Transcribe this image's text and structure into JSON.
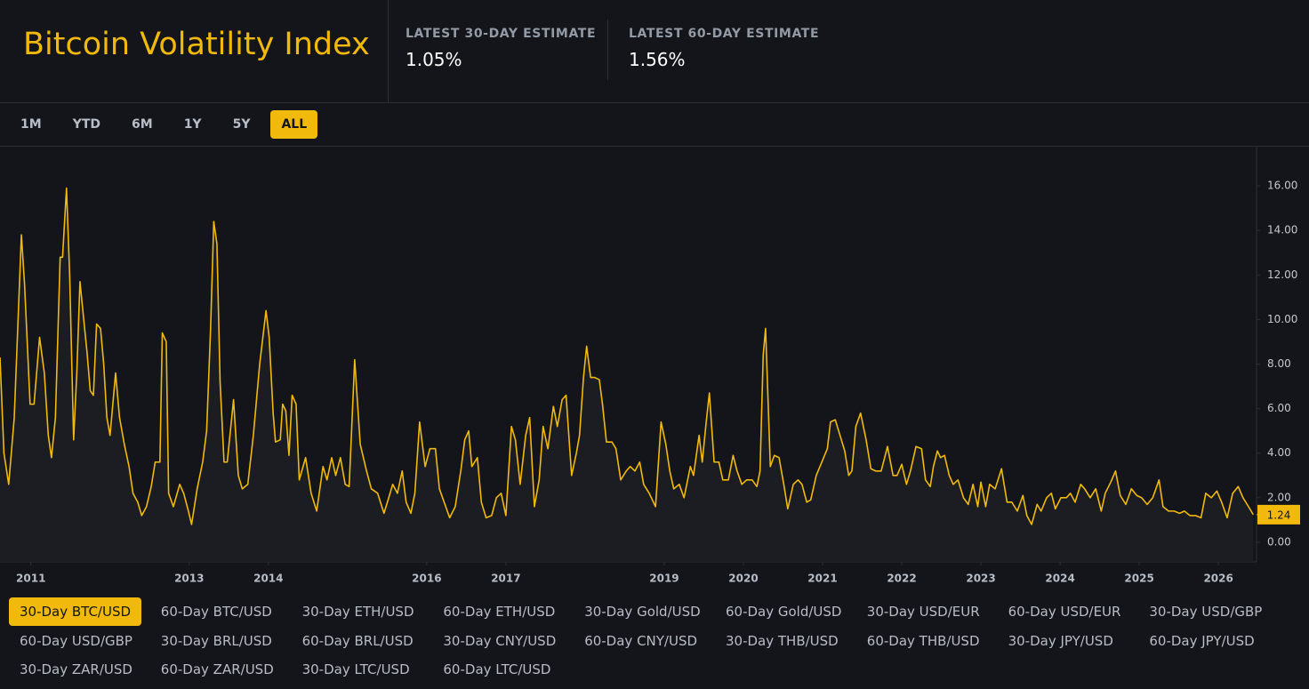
{
  "header": {
    "title": "Bitcoin Volatility Index",
    "stats": [
      {
        "label": "LATEST 30-DAY ESTIMATE",
        "value": "1.05%"
      },
      {
        "label": "LATEST 60-DAY ESTIMATE",
        "value": "1.56%"
      }
    ]
  },
  "range_buttons": [
    {
      "label": "1M",
      "selected": false
    },
    {
      "label": "YTD",
      "selected": false
    },
    {
      "label": "6M",
      "selected": false
    },
    {
      "label": "1Y",
      "selected": false
    },
    {
      "label": "5Y",
      "selected": false
    },
    {
      "label": "ALL",
      "selected": true
    }
  ],
  "other_series_tabs": [
    "60-Day BTC/USD",
    "30-Day ETH/USD",
    "60-Day ETH/USD",
    "30-Day Gold/USD",
    "60-Day Gold/USD",
    "30-Day USD/EUR",
    "60-Day USD/EUR",
    "30-Day USD/GBP",
    "60-Day USD/GBP",
    "30-Day BRL/USD",
    "60-Day BRL/USD",
    "30-Day CNY/USD",
    "60-Day CNY/USD",
    "30-Day THB/USD",
    "60-Day THB/USD",
    "30-Day JPY/USD",
    "60-Day JPY/USD",
    "30-Day ZAR/USD",
    "60-Day ZAR/USD",
    "30-Day LTC/USD",
    "60-Day LTC/USD"
  ],
  "chart_data": {
    "type": "line",
    "x": [
      2010.61,
      2010.66,
      2010.72,
      2010.79,
      2010.88,
      2010.92,
      2010.99,
      2011.04,
      2011.11,
      2011.17,
      2011.22,
      2011.26,
      2011.31,
      2011.37,
      2011.4,
      2011.45,
      2011.49,
      2011.54,
      2011.58,
      2011.62,
      2011.71,
      2011.75,
      2011.79,
      2011.83,
      2011.88,
      2011.92,
      2011.96,
      2012.0,
      2012.07,
      2012.12,
      2012.18,
      2012.24,
      2012.29,
      2012.35,
      2012.4,
      2012.46,
      2012.52,
      2012.57,
      2012.63,
      2012.66,
      2012.71,
      2012.74,
      2012.8,
      2012.88,
      2012.93,
      2012.99,
      2013.03,
      2013.1,
      2013.17,
      2013.22,
      2013.27,
      2013.31,
      2013.35,
      2013.39,
      2013.44,
      2013.48,
      2013.56,
      2013.62,
      2013.67,
      2013.74,
      2013.81,
      2013.89,
      2013.97,
      2014.01,
      2014.06,
      2014.09,
      2014.15,
      2014.18,
      2014.22,
      2014.26,
      2014.3,
      2014.35,
      2014.39,
      2014.47,
      2014.54,
      2014.61,
      2014.69,
      2014.74,
      2014.8,
      2014.85,
      2014.91,
      2014.97,
      2015.02,
      2015.09,
      2015.16,
      2015.24,
      2015.3,
      2015.38,
      2015.46,
      2015.52,
      2015.57,
      2015.63,
      2015.69,
      2015.74,
      2015.8,
      2015.85,
      2015.91,
      2015.98,
      2016.04,
      2016.11,
      2016.16,
      2016.22,
      2016.29,
      2016.36,
      2016.43,
      2016.48,
      2016.53,
      2016.57,
      2016.64,
      2016.69,
      2016.75,
      2016.82,
      2016.88,
      2016.94,
      2017.0,
      2017.07,
      2017.12,
      2017.18,
      2017.25,
      2017.3,
      2017.36,
      2017.42,
      2017.47,
      2017.53,
      2017.6,
      2017.65,
      2017.71,
      2017.76,
      2017.83,
      2017.89,
      2017.93,
      2017.98,
      2018.02,
      2018.07,
      2018.12,
      2018.18,
      2018.22,
      2018.27,
      2018.34,
      2018.39,
      2018.45,
      2018.52,
      2018.57,
      2018.63,
      2018.69,
      2018.74,
      2018.81,
      2018.89,
      2018.96,
      2019.02,
      2019.07,
      2019.12,
      2019.19,
      2019.25,
      2019.33,
      2019.37,
      2019.44,
      2019.48,
      2019.53,
      2019.57,
      2019.63,
      2019.69,
      2019.74,
      2019.81,
      2019.87,
      2019.92,
      2019.98,
      2020.04,
      2020.11,
      2020.17,
      2020.21,
      2020.25,
      2020.28,
      2020.34,
      2020.39,
      2020.45,
      2020.51,
      2020.56,
      2020.63,
      2020.69,
      2020.74,
      2020.8,
      2020.85,
      2020.92,
      2020.99,
      2021.06,
      2021.1,
      2021.16,
      2021.22,
      2021.28,
      2021.33,
      2021.37,
      2021.42,
      2021.48,
      2021.55,
      2021.61,
      2021.67,
      2021.74,
      2021.82,
      2021.89,
      2021.94,
      2022.0,
      2022.06,
      2022.11,
      2022.18,
      2022.25,
      2022.3,
      2022.36,
      2022.4,
      2022.45,
      2022.49,
      2022.54,
      2022.6,
      2022.65,
      2022.71,
      2022.78,
      2022.84,
      2022.9,
      2022.96,
      2023.0,
      2023.06,
      2023.11,
      2023.18,
      2023.26,
      2023.33,
      2023.39,
      2023.46,
      2023.53,
      2023.58,
      2023.64,
      2023.71,
      2023.76,
      2023.83,
      2023.89,
      2023.94,
      2024.01,
      2024.08,
      2024.13,
      2024.19,
      2024.26,
      2024.31,
      2024.38,
      2024.45,
      2024.52,
      2024.57,
      2024.64,
      2024.7,
      2024.76,
      2024.83,
      2024.9,
      2024.97,
      2025.03,
      2025.1,
      2025.17,
      2025.25,
      2025.3,
      2025.37,
      2025.44,
      2025.51,
      2025.57,
      2025.64,
      2025.71,
      2025.78,
      2025.84,
      2025.91,
      2025.98,
      2026.04,
      2026.11,
      2026.18,
      2026.25,
      2026.31,
      2026.38,
      2026.44
    ],
    "series": [
      {
        "name": "30-Day BTC/USD",
        "color": "#f0b90b",
        "values": [
          8.3,
          4.0,
          2.6,
          5.6,
          13.8,
          11.6,
          6.2,
          6.2,
          9.2,
          7.6,
          4.8,
          3.8,
          5.6,
          12.8,
          12.8,
          15.9,
          12.0,
          4.6,
          7.6,
          11.7,
          8.5,
          6.8,
          6.6,
          9.8,
          9.6,
          8.0,
          5.6,
          4.8,
          7.6,
          5.6,
          4.4,
          3.4,
          2.2,
          1.8,
          1.2,
          1.6,
          2.5,
          3.6,
          3.6,
          9.4,
          9.0,
          2.2,
          1.6,
          2.6,
          2.2,
          1.4,
          0.8,
          2.4,
          3.6,
          5.0,
          9.6,
          14.4,
          13.4,
          7.2,
          3.6,
          3.6,
          6.4,
          3.0,
          2.4,
          2.6,
          4.8,
          8.0,
          10.4,
          9.2,
          5.8,
          4.5,
          4.6,
          6.2,
          5.9,
          3.9,
          6.6,
          6.2,
          2.8,
          3.8,
          2.2,
          1.4,
          3.4,
          2.8,
          3.8,
          3.0,
          3.8,
          2.6,
          2.5,
          8.2,
          4.4,
          3.2,
          2.4,
          2.2,
          1.3,
          2.0,
          2.6,
          2.2,
          3.2,
          1.8,
          1.3,
          2.2,
          5.4,
          3.4,
          4.2,
          4.2,
          2.4,
          1.8,
          1.1,
          1.6,
          3.2,
          4.6,
          5.0,
          3.4,
          3.8,
          1.8,
          1.1,
          1.2,
          2.0,
          2.2,
          1.2,
          5.2,
          4.6,
          2.6,
          4.8,
          5.6,
          1.6,
          2.8,
          5.2,
          4.2,
          6.1,
          5.2,
          6.4,
          6.6,
          3.0,
          4.0,
          4.8,
          7.4,
          8.8,
          7.4,
          7.4,
          7.3,
          6.2,
          4.5,
          4.5,
          4.2,
          2.8,
          3.2,
          3.4,
          3.2,
          3.6,
          2.6,
          2.2,
          1.6,
          5.4,
          4.4,
          3.2,
          2.4,
          2.6,
          2.0,
          3.4,
          3.0,
          4.8,
          3.6,
          5.4,
          6.7,
          3.6,
          3.6,
          2.8,
          2.8,
          3.9,
          3.2,
          2.6,
          2.8,
          2.8,
          2.5,
          3.2,
          8.4,
          9.6,
          3.4,
          3.9,
          3.8,
          2.6,
          1.5,
          2.6,
          2.8,
          2.6,
          1.8,
          1.9,
          3.0,
          3.6,
          4.2,
          5.4,
          5.5,
          4.8,
          4.1,
          3.0,
          3.2,
          5.2,
          5.8,
          4.6,
          3.3,
          3.2,
          3.2,
          4.3,
          3.0,
          3.0,
          3.5,
          2.6,
          3.2,
          4.3,
          4.2,
          2.8,
          2.5,
          3.4,
          4.1,
          3.8,
          3.9,
          3.0,
          2.6,
          2.8,
          2.0,
          1.7,
          2.6,
          1.6,
          2.7,
          1.6,
          2.6,
          2.4,
          3.3,
          1.8,
          1.8,
          1.4,
          2.1,
          1.2,
          0.8,
          1.7,
          1.4,
          2.0,
          2.2,
          1.5,
          2.0,
          2.0,
          2.2,
          1.8,
          2.6,
          2.4,
          2.0,
          2.4,
          1.4,
          2.2,
          2.7,
          3.2,
          2.1,
          1.7,
          2.4,
          2.1,
          2.0,
          1.7,
          2.0,
          2.8,
          1.6,
          1.4,
          1.4,
          1.3,
          1.4,
          1.2,
          1.2,
          1.1,
          2.2,
          2.0,
          2.3,
          1.8,
          1.1,
          2.2,
          2.5,
          2.0,
          1.6,
          1.24
        ]
      }
    ],
    "xlim": [
      2010.61,
      2026.47
    ],
    "xticks": [
      2011,
      2013,
      2014,
      2016,
      2017,
      2019,
      2020,
      2021,
      2022,
      2023,
      2024,
      2025,
      2026
    ],
    "ylim": [
      -0.88,
      17.76
    ],
    "yticks": [
      {
        "value": 0,
        "label": "0.00"
      },
      {
        "value": 2,
        "label": "2.00"
      },
      {
        "value": 4,
        "label": "4.00"
      },
      {
        "value": 6,
        "label": "6.00"
      },
      {
        "value": 8,
        "label": "8.00"
      },
      {
        "value": 10,
        "label": "10.00"
      },
      {
        "value": 12,
        "label": "12.00"
      },
      {
        "value": 14,
        "label": "14.00"
      },
      {
        "value": 16,
        "label": "16.00"
      }
    ],
    "grid": false
  }
}
